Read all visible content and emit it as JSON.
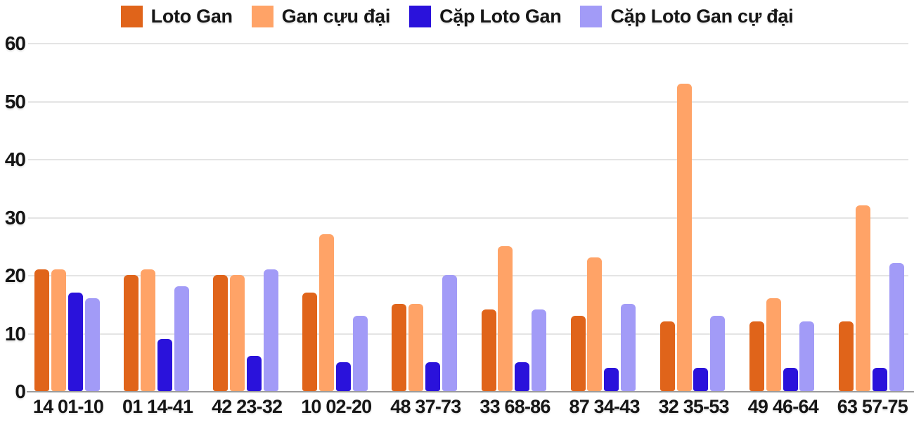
{
  "chart_data": {
    "type": "bar",
    "title": "",
    "xlabel": "",
    "ylabel": "",
    "ylim": [
      0,
      60
    ],
    "ytick_step": 10,
    "y_tick_labels": [
      "0",
      "10",
      "20",
      "30",
      "40",
      "50",
      "60"
    ],
    "grid": true,
    "legend_position": "top-center",
    "categories": [
      "14 01-10",
      "01 14-41",
      "42 23-32",
      "10 02-20",
      "48 37-73",
      "33 68-86",
      "87 34-43",
      "32 35-53",
      "49 46-64",
      "63 57-75"
    ],
    "series": [
      {
        "name": "Loto Gan",
        "color": "#E0641A",
        "values": [
          21,
          20,
          20,
          17,
          15,
          14,
          13,
          12,
          12,
          12
        ]
      },
      {
        "name": "Gan cựu đại",
        "color": "#FFA367",
        "values": [
          21,
          21,
          20,
          27,
          15,
          25,
          23,
          53,
          16,
          32
        ]
      },
      {
        "name": "Cặp Loto Gan",
        "color": "#2A12DB",
        "values": [
          17,
          9,
          6,
          5,
          5,
          5,
          4,
          4,
          4,
          4
        ]
      },
      {
        "name": "Cặp Loto Gan cự đại",
        "color": "#A29BF7",
        "values": [
          16,
          18,
          21,
          13,
          20,
          14,
          15,
          13,
          12,
          22
        ]
      }
    ]
  },
  "colors": {
    "background": "#FFFFFF",
    "gridline": "#E4E4E4",
    "axis_line": "#9B9B9B",
    "text": "#161616"
  }
}
